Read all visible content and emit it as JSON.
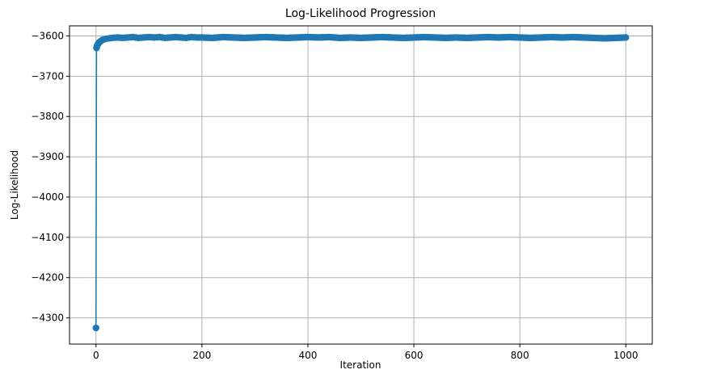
{
  "chart_data": {
    "type": "line",
    "title": "Log-Likelihood Progression",
    "xlabel": "Iteration",
    "ylabel": "Log-Likelihood",
    "xlim": [
      -50,
      1050
    ],
    "ylim": [
      -4365,
      -3575
    ],
    "x_ticks": [
      0,
      200,
      400,
      600,
      800,
      1000
    ],
    "y_ticks": [
      -4300,
      -4200,
      -4100,
      -4000,
      -3900,
      -3800,
      -3700,
      -3600
    ],
    "x_tick_labels": [
      "0",
      "200",
      "400",
      "600",
      "800",
      "1000"
    ],
    "y_tick_labels": [
      "−4300",
      "−4200",
      "−4100",
      "−4000",
      "−3900",
      "−3800",
      "−3700",
      "−3600"
    ],
    "grid": true,
    "series": [
      {
        "color": "#1f77b4",
        "marker": "circle",
        "x": [
          0,
          1,
          2,
          3,
          4,
          5,
          6,
          8,
          10,
          12,
          15,
          20,
          25,
          30,
          40,
          50,
          60,
          70,
          80,
          90,
          100,
          110,
          120,
          130,
          140,
          150,
          160,
          170,
          180,
          190,
          200,
          220,
          240,
          260,
          280,
          300,
          320,
          340,
          360,
          380,
          400,
          420,
          440,
          460,
          480,
          500,
          520,
          540,
          560,
          580,
          600,
          620,
          640,
          660,
          680,
          700,
          720,
          740,
          760,
          780,
          800,
          820,
          840,
          860,
          880,
          900,
          920,
          940,
          960,
          980,
          1000
        ],
        "y": [
          -4325,
          -3630,
          -3625,
          -3622,
          -3620,
          -3618,
          -3616,
          -3614,
          -3612,
          -3610,
          -3609,
          -3607,
          -3606,
          -3605,
          -3604,
          -3605,
          -3604,
          -3603,
          -3605,
          -3604,
          -3603,
          -3604,
          -3603,
          -3605,
          -3604,
          -3603,
          -3604,
          -3605,
          -3603,
          -3604,
          -3604,
          -3605,
          -3603,
          -3604,
          -3605,
          -3604,
          -3603,
          -3604,
          -3605,
          -3604,
          -3603,
          -3604,
          -3603,
          -3605,
          -3604,
          -3605,
          -3604,
          -3603,
          -3604,
          -3605,
          -3604,
          -3603,
          -3604,
          -3605,
          -3604,
          -3605,
          -3604,
          -3603,
          -3604,
          -3603,
          -3604,
          -3605,
          -3604,
          -3603,
          -3604,
          -3603,
          -3604,
          -3605,
          -3606,
          -3605,
          -3604
        ]
      }
    ]
  }
}
